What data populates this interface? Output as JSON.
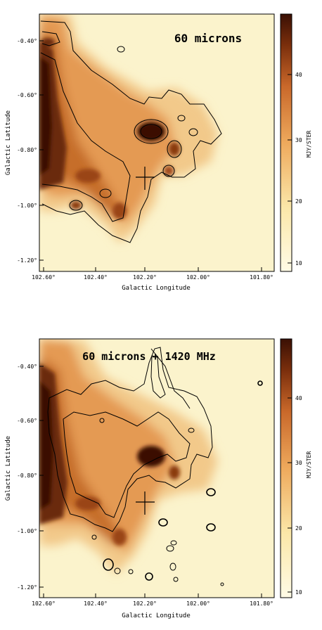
{
  "panels": [
    {
      "title": "60 microns",
      "x_axis": {
        "label": "Galactic Longitude",
        "ticks": [
          "102.60°",
          "102.40°",
          "102.20°",
          "102.00°",
          "101.80°"
        ]
      },
      "y_axis": {
        "label": "Galactic Latitude",
        "ticks": [
          "-0.40°",
          "-0.60°",
          "-0.80°",
          "-1.00°",
          "-1.20°"
        ]
      },
      "colorbar": {
        "label": "MJY/STER",
        "ticks": [
          "40",
          "30",
          "20",
          "10"
        ]
      }
    },
    {
      "title": "60 microns + 1420 MHz",
      "x_axis": {
        "label": "Galactic Longitude",
        "ticks": [
          "102.60°",
          "102.40°",
          "102.20°",
          "102.00°",
          "101.80°"
        ]
      },
      "y_axis": {
        "label": "Galactic Latitude",
        "ticks": [
          "-0.40°",
          "-0.60°",
          "-0.80°",
          "-1.00°",
          "-1.20°"
        ]
      },
      "colorbar": {
        "label": "MJY/STER",
        "ticks": [
          "40",
          "30",
          "20",
          "10"
        ]
      }
    }
  ],
  "colors": {
    "background": "#fbf3c9",
    "light": "#f7dfa0",
    "mid": "#e8a050",
    "orange": "#d07a2c",
    "dark": "#6a2a0c",
    "darkest": "#3a1004"
  }
}
